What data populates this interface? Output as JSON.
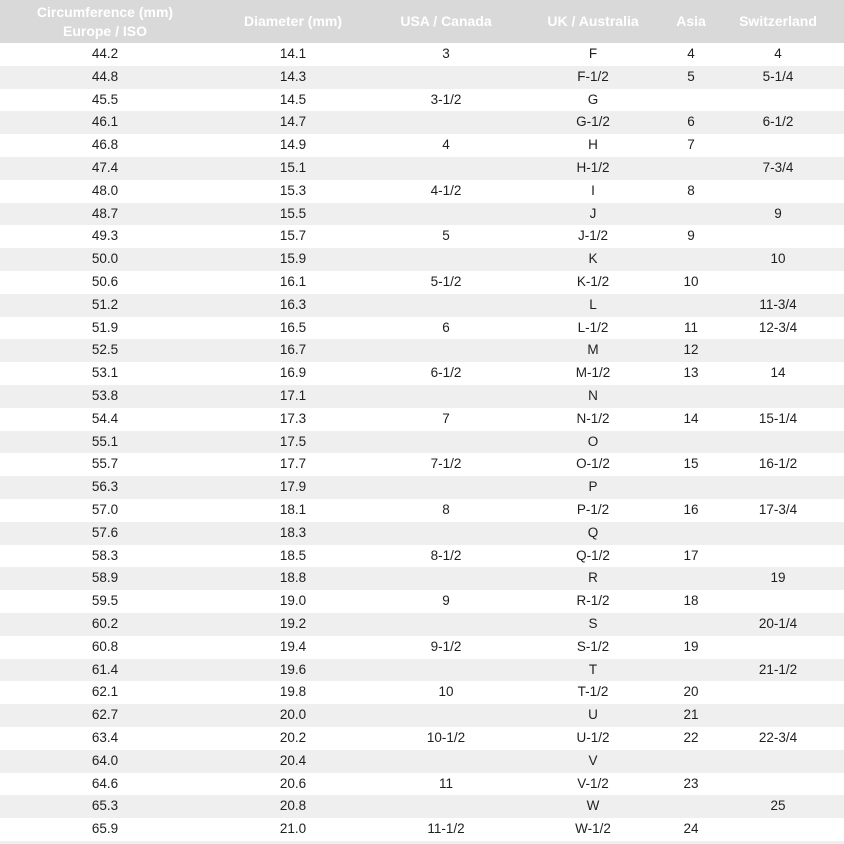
{
  "colors": {
    "header_bg": "#d9d9d9",
    "header_text": "#ffffff",
    "row_stripe": "#efefef",
    "row_bg": "#ffffff",
    "row_text": "#1f1f1f"
  },
  "chart_data": {
    "type": "table",
    "title": "",
    "columns": [
      {
        "name": "circumference-europe-iso",
        "lines": [
          "Circumference (mm)",
          "Europe / ISO"
        ]
      },
      {
        "name": "diameter-mm",
        "lines": [
          "Diameter (mm)"
        ]
      },
      {
        "name": "usa-canada",
        "lines": [
          "USA / Canada"
        ]
      },
      {
        "name": "uk-australia",
        "lines": [
          "UK / Australia"
        ]
      },
      {
        "name": "asia",
        "lines": [
          "Asia"
        ]
      },
      {
        "name": "switzerland",
        "lines": [
          "Switzerland"
        ]
      }
    ],
    "rows": [
      [
        "44.2",
        "14.1",
        "3",
        "F",
        "4",
        "4"
      ],
      [
        "44.8",
        "14.3",
        "",
        "F-1/2",
        "5",
        "5-1/4"
      ],
      [
        "45.5",
        "14.5",
        "3-1/2",
        "G",
        "",
        ""
      ],
      [
        "46.1",
        "14.7",
        "",
        "G-1/2",
        "6",
        "6-1/2"
      ],
      [
        "46.8",
        "14.9",
        "4",
        "H",
        "7",
        ""
      ],
      [
        "47.4",
        "15.1",
        "",
        "H-1/2",
        "",
        "7-3/4"
      ],
      [
        "48.0",
        "15.3",
        "4-1/2",
        "I",
        "8",
        ""
      ],
      [
        "48.7",
        "15.5",
        "",
        "J",
        "",
        "9"
      ],
      [
        "49.3",
        "15.7",
        "5",
        "J-1/2",
        "9",
        ""
      ],
      [
        "50.0",
        "15.9",
        "",
        "K",
        "",
        "10"
      ],
      [
        "50.6",
        "16.1",
        "5-1/2",
        "K-1/2",
        "10",
        ""
      ],
      [
        "51.2",
        "16.3",
        "",
        "L",
        "",
        "11-3/4"
      ],
      [
        "51.9",
        "16.5",
        "6",
        "L-1/2",
        "11",
        "12-3/4"
      ],
      [
        "52.5",
        "16.7",
        "",
        "M",
        "12",
        ""
      ],
      [
        "53.1",
        "16.9",
        "6-1/2",
        "M-1/2",
        "13",
        "14"
      ],
      [
        "53.8",
        "17.1",
        "",
        "N",
        "",
        ""
      ],
      [
        "54.4",
        "17.3",
        "7",
        "N-1/2",
        "14",
        "15-1/4"
      ],
      [
        "55.1",
        "17.5",
        "",
        "O",
        "",
        ""
      ],
      [
        "55.7",
        "17.7",
        "7-1/2",
        "O-1/2",
        "15",
        "16-1/2"
      ],
      [
        "56.3",
        "17.9",
        "",
        "P",
        "",
        ""
      ],
      [
        "57.0",
        "18.1",
        "8",
        "P-1/2",
        "16",
        "17-3/4"
      ],
      [
        "57.6",
        "18.3",
        "",
        "Q",
        "",
        ""
      ],
      [
        "58.3",
        "18.5",
        "8-1/2",
        "Q-1/2",
        "17",
        ""
      ],
      [
        "58.9",
        "18.8",
        "",
        "R",
        "",
        "19"
      ],
      [
        "59.5",
        "19.0",
        "9",
        "R-1/2",
        "18",
        ""
      ],
      [
        "60.2",
        "19.2",
        "",
        "S",
        "",
        "20-1/4"
      ],
      [
        "60.8",
        "19.4",
        "9-1/2",
        "S-1/2",
        "19",
        ""
      ],
      [
        "61.4",
        "19.6",
        "",
        "T",
        "",
        "21-1/2"
      ],
      [
        "62.1",
        "19.8",
        "10",
        "T-1/2",
        "20",
        ""
      ],
      [
        "62.7",
        "20.0",
        "",
        "U",
        "21",
        ""
      ],
      [
        "63.4",
        "20.2",
        "10-1/2",
        "U-1/2",
        "22",
        "22-3/4"
      ],
      [
        "64.0",
        "20.4",
        "",
        "V",
        "",
        ""
      ],
      [
        "64.6",
        "20.6",
        "11",
        "V-1/2",
        "23",
        ""
      ],
      [
        "65.3",
        "20.8",
        "",
        "W",
        "",
        "25"
      ],
      [
        "65.9",
        "21.0",
        "11-1/2",
        "W-1/2",
        "24",
        ""
      ]
    ]
  }
}
